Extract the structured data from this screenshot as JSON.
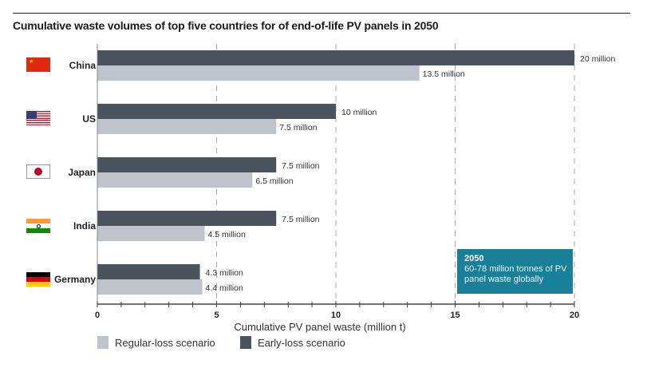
{
  "title": "Cumulative waste volumes of top five countries for of end-of-life PV panels in 2050",
  "chart_data": {
    "type": "bar",
    "orientation": "horizontal",
    "title": "Cumulative waste volumes of top five countries for of end-of-life PV panels in 2050",
    "xlabel": "Cumulative PV panel waste (million t)",
    "ylabel": "",
    "xlim": [
      0,
      20
    ],
    "xticks": [
      0,
      5,
      10,
      15,
      20
    ],
    "grid": "dashed vertical at major ticks",
    "legend_placement": "bottom-left",
    "categories": [
      "China",
      "US",
      "Japan",
      "India",
      "Germany"
    ],
    "series": [
      {
        "name": "Early-loss scenario",
        "color": "#4a535e",
        "values": [
          20,
          10,
          7.5,
          7.5,
          4.3
        ],
        "labels": [
          "20 million",
          "10 million",
          "7.5 million",
          "7.5 million",
          "4.3 million"
        ]
      },
      {
        "name": "Regular-loss scenario",
        "color": "#bfc4cc",
        "values": [
          13.5,
          7.5,
          6.5,
          4.5,
          4.4
        ],
        "labels": [
          "13.5 million",
          "7.5 million",
          "6.5 million",
          "4.5 million",
          "4.4 million"
        ]
      }
    ],
    "annotation": {
      "heading": "2050",
      "text": "60-78 million tonnes of PV panel waste globally",
      "color": "#1a7f99"
    }
  },
  "legend": {
    "regular": "Regular-loss scenario",
    "early": "Early-loss scenario"
  }
}
